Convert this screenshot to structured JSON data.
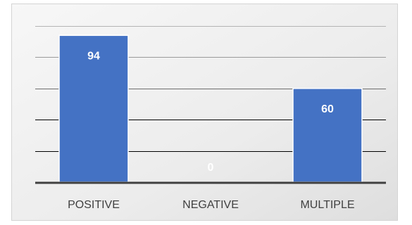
{
  "chart_data": {
    "type": "bar",
    "categories": [
      "POSITIVE",
      "NEGATIVE",
      "MULTIPLE"
    ],
    "values": [
      94,
      0,
      60
    ],
    "title": "",
    "xlabel": "",
    "ylabel": "",
    "ylim": [
      0,
      100
    ],
    "grid": true,
    "legend": "none",
    "colors": {
      "bar": "#4472c4",
      "bar_edge": "#ffffff",
      "data_label": "#ffffff",
      "category_label": "#404040",
      "axis": "#404040"
    }
  }
}
